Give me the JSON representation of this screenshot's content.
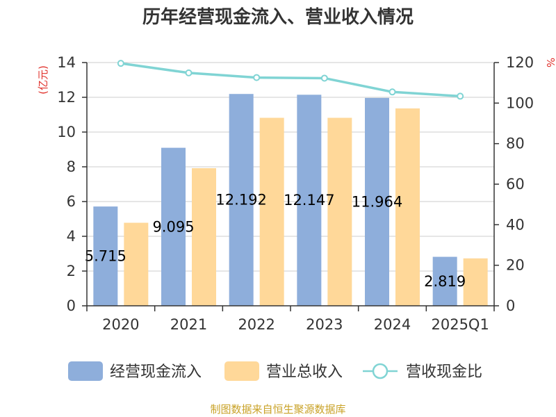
{
  "chart_data": {
    "type": "bar",
    "title": "历年经营现金流入、营业收入情况",
    "categories": [
      "2020",
      "2021",
      "2022",
      "2023",
      "2024",
      "2025Q1"
    ],
    "series": [
      {
        "name": "经营现金流入",
        "type": "bar",
        "axis": "left",
        "color": "#8eaedb",
        "values": [
          5.715,
          9.095,
          12.192,
          12.147,
          11.964,
          2.819
        ],
        "labels": [
          "5.715",
          "9.095",
          "12.192",
          "12.147",
          "11.964",
          "2.819"
        ]
      },
      {
        "name": "营业总收入",
        "type": "bar",
        "axis": "left",
        "color": "#ffd899",
        "values": [
          4.78,
          7.92,
          10.82,
          10.82,
          11.36,
          2.73
        ]
      },
      {
        "name": "营收现金比",
        "type": "line",
        "axis": "right",
        "color": "#80d4d4",
        "values": [
          119.6,
          114.9,
          112.6,
          112.3,
          105.5,
          103.4
        ]
      }
    ],
    "y_left": {
      "unit": "(亿元)",
      "ticks": [
        0,
        2,
        4,
        6,
        8,
        10,
        12,
        14
      ],
      "ylim": [
        0,
        14
      ]
    },
    "y_right": {
      "unit": "%",
      "ticks": [
        0,
        20,
        40,
        60,
        80,
        100,
        120
      ],
      "ylim": [
        0,
        120
      ]
    },
    "grid": true,
    "legend": "bottom",
    "source": "制图数据来自恒生聚源数据库"
  }
}
